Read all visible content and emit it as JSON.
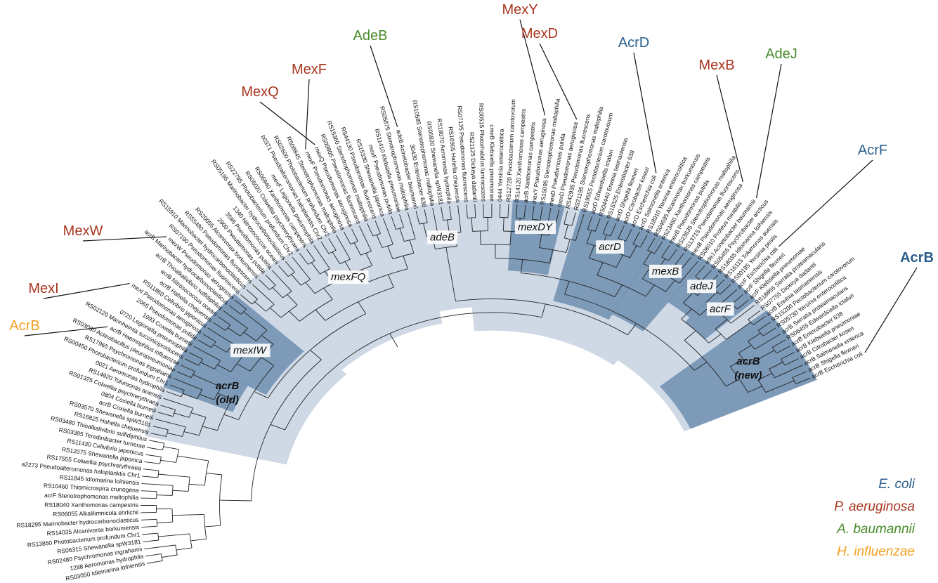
{
  "leaves": [
    "RS03050 Idiomarina loihiensis",
    "1288 Aeromonas hydrophila",
    "RS02480 Psychromonas ingrahamii",
    "RS06315 Shewanella spW3181",
    "RS13850 Photobacterium profundum Chr1",
    "RS14035 Alcanivorax borkumensis",
    "RS18295 Marinobacter hydrocarbonoclasticus",
    "RS06055 Alkalilimnicola ehrlichii",
    "RS18040 Xanthomonas campestris",
    "acrF Stenotrophomonas maltophilia",
    "RS10460 Thiomicrospira crunogena",
    "RS11845 Idiomarina loihiensis",
    "a2273 Pseudoalteromonas haloplanktis Chr1",
    "RS17555 Colwellia psychrerythraea",
    "RS12075 Shewanella japonica",
    "RS11430 Cellvibrio japonicus",
    "RS03385 Teredinibacter turnerae",
    "RS03480 Thioalkalivibrio sulfidiphilus",
    "RS16825 Hahella chejuensis",
    "RS03570 Shewanella spW3181",
    "acrB Coxiella burnetii",
    "0804 Coxiella burnetii",
    "RS01325 Colwellia psychrerythraea",
    "RS14920 Tolumonas auensis",
    "0021 Aeromonas hydrophila",
    "RS00450 Photobacterium profundum Chr1",
    "RS17965 Psychromonas ingrahamii",
    "RS03080 Actinobacillus pleuropneumoniae",
    "acrB Haemophilus influenzae",
    "RS02120 Mannheimia succiniciproducens",
    "0720 Legionella pneumophila",
    "1093 Coxiella burnetii",
    "2065 Pseudomonas putida",
    "mexI Pseudomonas aeruginosa",
    "RS11860 Cellvibrio japonicus",
    "acrB Hahella chejuensis",
    "acrB Nitrosococcus oceani",
    "acrB Thioalkalivibrio sulfidiphilus",
    "acrB Marinobacter hydrocarbonoclasticus",
    "mexW Pseudomonas aeruginosa",
    "RS07190 Pseudomonas fluorescens",
    "RS15910 Marinobacter hydrocarbonoclasticus",
    "RS55480 Pseudomonas fluorescens",
    "RS20055 Alcanivorax borkumensis",
    "2900 Pseudomonas putida",
    "3595 Pseudomonas putida",
    "1340 Nitrosococcus oceani",
    "RS05195 Marinobacter hydrocarbonoclasticus",
    "RS22795 Photobacterium profundum Chr2",
    "RS06020 Colwellia psychrerythraea",
    "RS06940 Xanthomonas campestris",
    "mexF Legionella pneumophila",
    "b0371 Pseudoalteromonas haloplanktis Chr2",
    "RS02600 Photobacterium profundum Chr2",
    "RS08845 Stenotrophomonas maltophilia",
    "mexF Pseudomonas aeruginosa",
    "mexQ Pseudomonas aeruginosa",
    "RS09805 Pseudomonas fluorescens",
    "RS15360 Stenotrophomonas maltophilia",
    "RS44130 Pseudomonas fluorescens",
    "RS15330 Shewanella japonica",
    "mexF Pseudomonas putida",
    "RS11410 Klebsiella pneumoniae",
    "RS05875 Stenotrophomonas maltophilia",
    "adeB Acinetobacter baumannii",
    "30430 Enterobacter 638",
    "RS10585 Stenotrophomonas maltophilia",
    "RS05820 Shewanella spW3181",
    "RS18070 Aeromonas hydrophila",
    "RS16955 Hahella chejuensis",
    "RS07135 Pseudomonas fluorescens",
    "RS21125 Dickeya dadantii",
    "RS00515 Photorhabdus luminescens",
    "cmeB Klebsiella pneumoniae",
    "0444 Yersinia enterocolitica",
    "RS12720 Pectobacterium carotovorum",
    "RS14120 Xanthomonas campestris",
    "acrB Xanthomonas campestris",
    "mexY Pseudomonas aeruginosa",
    "RS15095 Stenotrophomonas maltophilia",
    "mexD Pseudomonas putida",
    "mexD Pseudomonas aeruginosa",
    "RS42935 Pseudomonas fluorescens",
    "RS21195 Stenotrophomonas maltophilia",
    "RS19555 Pectobacterium carotovorum",
    "acrD Edwardsiella ictaluri",
    "RS04440 Erwinia tasmaniensis",
    "RS15325 Enterobacter 638",
    "acrD Shigella flexneri",
    "acrD Citrobacter koseri",
    "acrD Escherichia coli",
    "acrD Salmonella enterica",
    "RS18010 Yersinia enterocolitica",
    "RS04695 Alcanivorax borkumensis",
    "RS23460 Xanthomonas campestris",
    "mexB Pseudomonas putida",
    "RS23635 Stenotrophomonas maltophilia",
    "RS13715 Pseudomonas fluorescens",
    "mexB Pseudomonas aeruginosa",
    "RS08010 Proteus mirabilis",
    "adeJ Acinetobacter baumannii",
    "RS05455 Psychrobacter arcticus",
    "RS18035 Idiomarina loihiensis",
    "RS16115 Tolumonas auensis",
    "RS00195 Yersinia pestis",
    "acrF Escherichia coli",
    "acrF Shigella flexneri",
    "acrF Klebsiella pneumoniae",
    "RS18855 Serratia proteamaculans",
    "RS07755 Dickeya dadantii",
    "acrB Erwinia tasmaniensis",
    "RS15200 Pectobacterium carotovorum",
    "RS05730 Yersinia enterocolitica",
    "acrB Serratia proteamaculans",
    "RS06455 Edwardsiella ictaluri",
    "acrB Enterobacter 638",
    "acrB Klebsiella pneumoniae",
    "acrB Citrobacter koseri",
    "acrB Salmonella enterica",
    "acrB Shigella flexneri",
    "acrB Escherichia coli"
  ],
  "clades": [
    {
      "lines": [
        "mexIW"
      ]
    },
    {
      "lines": [
        "acrB",
        "(old)"
      ]
    },
    {
      "lines": [
        "mexFQ"
      ]
    },
    {
      "lines": [
        "adeB"
      ]
    },
    {
      "lines": [
        "mexDY"
      ]
    },
    {
      "lines": [
        "acrD"
      ]
    },
    {
      "lines": [
        "mexB"
      ]
    },
    {
      "lines": [
        "adeJ"
      ]
    },
    {
      "lines": [
        "acrF"
      ]
    },
    {
      "lines": [
        "acrB",
        "(new)"
      ]
    }
  ],
  "callouts": [
    {
      "label": "MexY",
      "color": "#a8351f"
    },
    {
      "label": "MexD",
      "color": "#a8351f"
    },
    {
      "label": "AcrD",
      "color": "#2b5e8c"
    },
    {
      "label": "MexB",
      "color": "#a8351f"
    },
    {
      "label": "AdeJ",
      "color": "#4a8a2a"
    },
    {
      "label": "AcrF",
      "color": "#2b5e8c"
    },
    {
      "label": "AcrB",
      "color": "#2b5e8c"
    },
    {
      "label": "AdeB",
      "color": "#4a8a2a"
    },
    {
      "label": "MexF",
      "color": "#a8351f"
    },
    {
      "label": "MexQ",
      "color": "#a8351f"
    },
    {
      "label": "MexW",
      "color": "#a8351f"
    },
    {
      "label": "MexI",
      "color": "#a8351f"
    },
    {
      "label": "AcrB",
      "color": "#f4a020"
    }
  ],
  "legend": [
    {
      "name": "E. coli",
      "color": "#2b5e8c"
    },
    {
      "name": "P. aeruginosa",
      "color": "#a8351f"
    },
    {
      "name": "A. baumannii",
      "color": "#4a8a2a"
    },
    {
      "name": "H. influenzae",
      "color": "#f4a020"
    }
  ]
}
